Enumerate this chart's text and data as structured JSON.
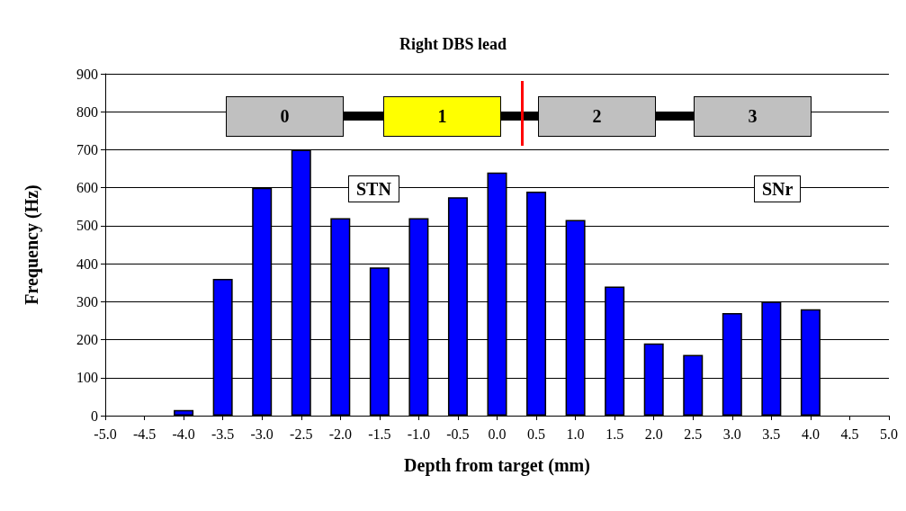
{
  "chart_data": {
    "type": "bar",
    "title": "Right DBS lead",
    "xlabel": "Depth from target (mm)",
    "ylabel": "Frequency (Hz)",
    "categories": [
      "-5.0",
      "-4.5",
      "-4.0",
      "-3.5",
      "-3.0",
      "-2.5",
      "-2.0",
      "-1.5",
      "-1.0",
      "-0.5",
      "0.0",
      "0.5",
      "1.0",
      "1.5",
      "2.0",
      "2.5",
      "3.0",
      "3.5",
      "4.0",
      "4.5",
      "5.0"
    ],
    "values": [
      null,
      null,
      15,
      360,
      600,
      700,
      520,
      390,
      520,
      575,
      640,
      590,
      515,
      340,
      190,
      160,
      270,
      300,
      280,
      null,
      null
    ],
    "color": "#0000ff",
    "ylim": [
      0,
      900
    ],
    "yticks": [
      0,
      100,
      200,
      300,
      400,
      500,
      600,
      700,
      800,
      900
    ],
    "grid": "y",
    "annotations": [
      "0",
      "1",
      "2",
      "3",
      "STN",
      "SNr"
    ]
  }
}
